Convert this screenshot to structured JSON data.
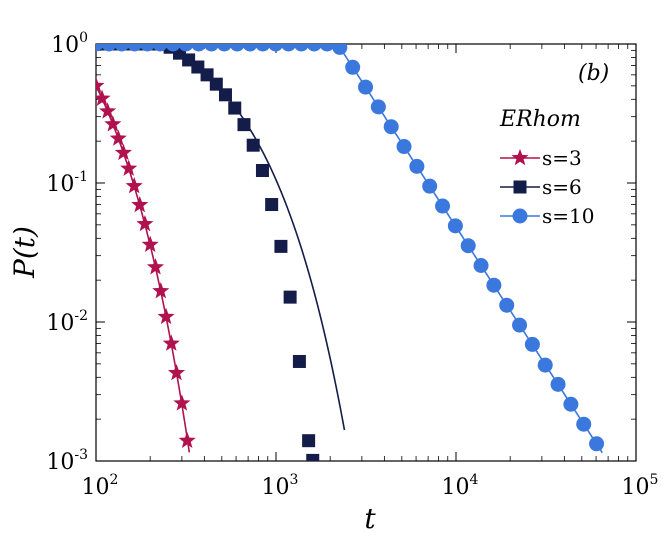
{
  "chart_data": {
    "type": "line",
    "panel_label": "(b)",
    "xlabel": "t",
    "ylabel": "P(t)",
    "xscale": "log",
    "yscale": "log",
    "xlim": [
      100,
      100000
    ],
    "ylim": [
      0.001,
      1
    ],
    "x_ticks": [
      {
        "base": "10",
        "exp": "2"
      },
      {
        "base": "10",
        "exp": "3"
      },
      {
        "base": "10",
        "exp": "4"
      },
      {
        "base": "10",
        "exp": "5"
      }
    ],
    "y_ticks": [
      {
        "base": "10",
        "exp": "0"
      },
      {
        "base": "10",
        "exp": "-1"
      },
      {
        "base": "10",
        "exp": "-2"
      },
      {
        "base": "10",
        "exp": "-3"
      }
    ],
    "legend": {
      "title": "ERhom",
      "location": "right"
    },
    "series": [
      {
        "name": "s=3",
        "color": "#b0124f",
        "marker": "star",
        "model": {
          "type": "exp_decay",
          "t_start": 100,
          "t_end": 330,
          "p0": 0.5,
          "rate": 0.0264
        },
        "points": [
          [
            100,
            0.5
          ],
          [
            108,
            0.405
          ],
          [
            116,
            0.328
          ],
          [
            124,
            0.265
          ],
          [
            133,
            0.209
          ],
          [
            142,
            0.165
          ],
          [
            152,
            0.127
          ],
          [
            163,
            0.0951
          ],
          [
            175,
            0.0695
          ],
          [
            187,
            0.0507
          ],
          [
            200,
            0.036
          ],
          [
            214,
            0.0248
          ],
          [
            229,
            0.0167
          ],
          [
            245,
            0.0109
          ],
          [
            262,
            0.007
          ],
          [
            280,
            0.0043
          ],
          [
            300,
            0.0026
          ],
          [
            321,
            0.0014
          ]
        ]
      },
      {
        "name": "s=6",
        "color": "#141c4a",
        "marker": "square",
        "model": {
          "type": "plateau_exp",
          "t_start": 100,
          "t_end": 2400,
          "t0": 240,
          "rate": 0.00296
        },
        "points": [
          [
            100,
            1
          ],
          [
            113,
            1
          ],
          [
            127,
            1
          ],
          [
            143,
            1
          ],
          [
            161,
            1
          ],
          [
            181,
            1
          ],
          [
            204,
            1
          ],
          [
            229,
            1
          ],
          [
            258,
            0.948
          ],
          [
            291,
            0.859
          ],
          [
            327,
            0.768
          ],
          [
            368,
            0.683
          ],
          [
            414,
            0.6
          ],
          [
            466,
            0.514
          ],
          [
            524,
            0.431
          ],
          [
            590,
            0.346
          ],
          [
            664,
            0.263
          ],
          [
            747,
            0.187
          ],
          [
            841,
            0.123
          ],
          [
            946,
            0.07
          ],
          [
            1065,
            0.035
          ],
          [
            1198,
            0.0151
          ],
          [
            1349,
            0.0052
          ],
          [
            1518,
            0.0014
          ],
          [
            1600,
            0.00101
          ]
        ]
      },
      {
        "name": "s=10",
        "color": "#3a78de",
        "marker": "circle",
        "model": {
          "type": "plateau_power",
          "t_start": 100,
          "t_end": 65000,
          "t0": 2200,
          "alpha": 2.0
        },
        "points": [
          [
            100,
            1
          ],
          [
            118,
            1
          ],
          [
            139,
            1
          ],
          [
            164,
            1
          ],
          [
            193,
            1
          ],
          [
            227,
            1
          ],
          [
            268,
            1
          ],
          [
            316,
            1
          ],
          [
            372,
            1
          ],
          [
            438,
            1
          ],
          [
            516,
            1
          ],
          [
            609,
            1
          ],
          [
            717,
            1
          ],
          [
            845,
            1
          ],
          [
            996,
            1
          ],
          [
            1174,
            1
          ],
          [
            1383,
            1
          ],
          [
            1630,
            1
          ],
          [
            1921,
            1
          ],
          [
            2263,
            0.945
          ],
          [
            2667,
            0.68
          ],
          [
            3143,
            0.49
          ],
          [
            3704,
            0.353
          ],
          [
            4365,
            0.254
          ],
          [
            5144,
            0.183
          ],
          [
            6062,
            0.1317
          ],
          [
            7143,
            0.0949
          ],
          [
            8418,
            0.0683
          ],
          [
            9920,
            0.0492
          ],
          [
            11690,
            0.0354
          ],
          [
            13776,
            0.0255
          ],
          [
            16235,
            0.0184
          ],
          [
            19132,
            0.0132
          ],
          [
            22546,
            0.0095
          ],
          [
            26569,
            0.0069
          ],
          [
            31310,
            0.0049
          ],
          [
            36897,
            0.00356
          ],
          [
            43481,
            0.00256
          ],
          [
            51240,
            0.00184
          ],
          [
            60384,
            0.00133
          ]
        ]
      }
    ]
  }
}
